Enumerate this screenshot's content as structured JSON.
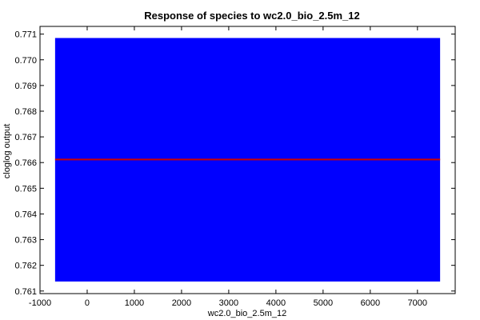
{
  "chart_data": {
    "type": "area",
    "title": "Response of species to wc2.0_bio_2.5m_12",
    "xlabel": "wc2.0_bio_2.5m_12",
    "ylabel": "cloglog output",
    "xlim": [
      -1000,
      7800
    ],
    "ylim": [
      0.7609,
      0.7713
    ],
    "xticks": [
      -1000,
      0,
      1000,
      2000,
      3000,
      4000,
      5000,
      6000,
      7000
    ],
    "xtick_labels": [
      "-1000",
      "0",
      "1000",
      "2000",
      "3000",
      "4000",
      "5000",
      "6000",
      "7000"
    ],
    "yticks": [
      0.761,
      0.762,
      0.763,
      0.764,
      0.765,
      0.766,
      0.767,
      0.768,
      0.769,
      0.77,
      0.771
    ],
    "ytick_labels": [
      "0.761",
      "0.762",
      "0.763",
      "0.764",
      "0.765",
      "0.766",
      "0.767",
      "0.768",
      "0.769",
      "0.770",
      "0.771"
    ],
    "grid": false,
    "series": [
      {
        "role": "band",
        "color": "#0000ff",
        "x": [
          -680,
          7480
        ],
        "lower": [
          0.76137,
          0.76137
        ],
        "upper": [
          0.77085,
          0.77085
        ]
      },
      {
        "role": "line",
        "color": "#cc0000",
        "x": [
          -680,
          7480
        ],
        "y": [
          0.76612,
          0.76612
        ]
      }
    ]
  }
}
